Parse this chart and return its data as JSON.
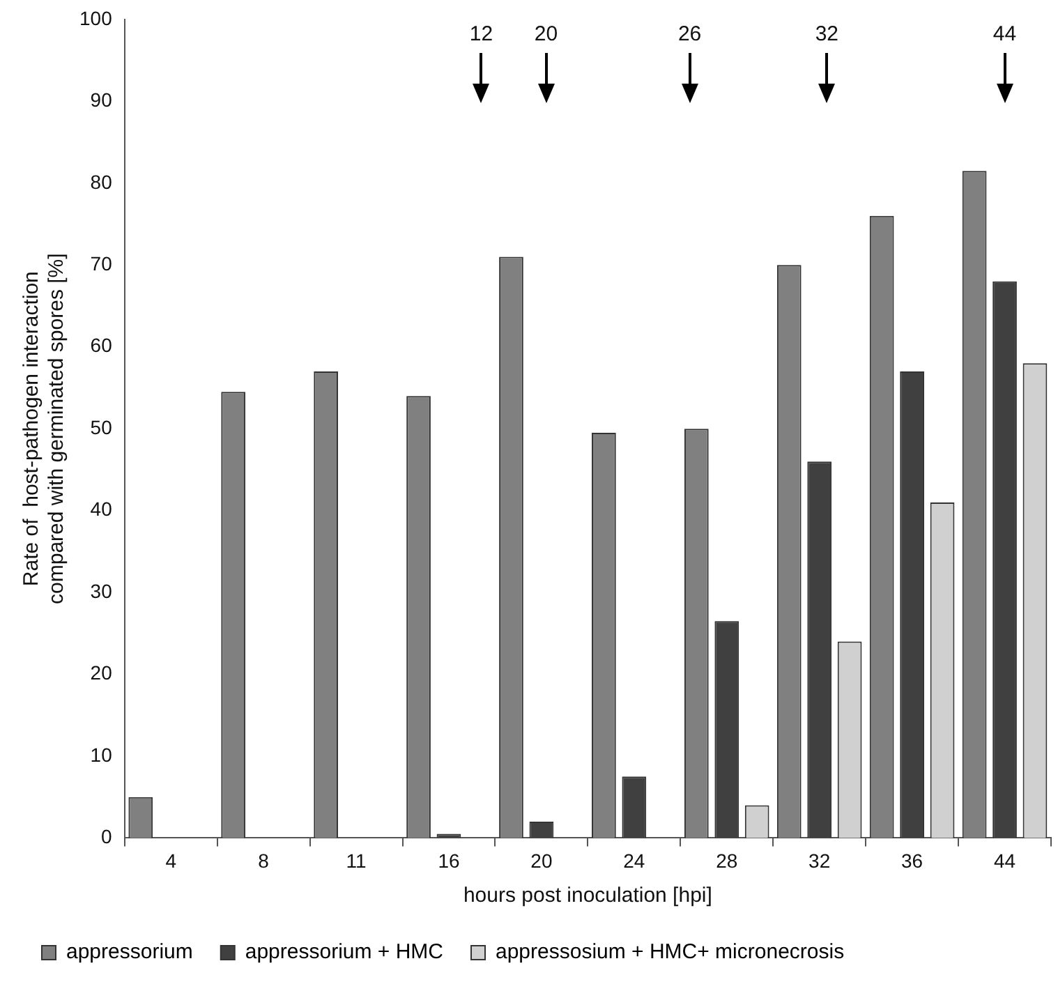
{
  "chart_data": {
    "type": "bar",
    "xlabel": "hours post inoculation [hpi]",
    "ylabel": "Rate of  host-pathogen interaction\ncompared with germinated spores [%]",
    "categories": [
      "4",
      "8",
      "11",
      "16",
      "20",
      "24",
      "28",
      "32",
      "36",
      "44"
    ],
    "series": [
      {
        "name": "appressorium",
        "color": "#808080",
        "values": [
          5,
          54.5,
          57,
          54,
          71,
          49.5,
          50,
          70,
          76,
          81.5
        ]
      },
      {
        "name": "appressorium + HMC",
        "color": "#404040",
        "values": [
          0,
          0,
          0,
          0.5,
          2,
          7.5,
          26.5,
          46,
          57,
          68
        ]
      },
      {
        "name": "appressosium + HMC+ micronecrosis",
        "color": "#d0d0d0",
        "values": [
          0,
          0,
          0,
          0,
          0,
          0,
          4,
          24,
          41,
          58
        ]
      }
    ],
    "ylim": [
      0,
      100
    ],
    "yticks": [
      0,
      10,
      20,
      30,
      40,
      50,
      60,
      70,
      80,
      90,
      100
    ],
    "grid": false,
    "legend": "bottom left",
    "annotations": [
      "12",
      "20",
      "26",
      "32",
      "44"
    ]
  }
}
